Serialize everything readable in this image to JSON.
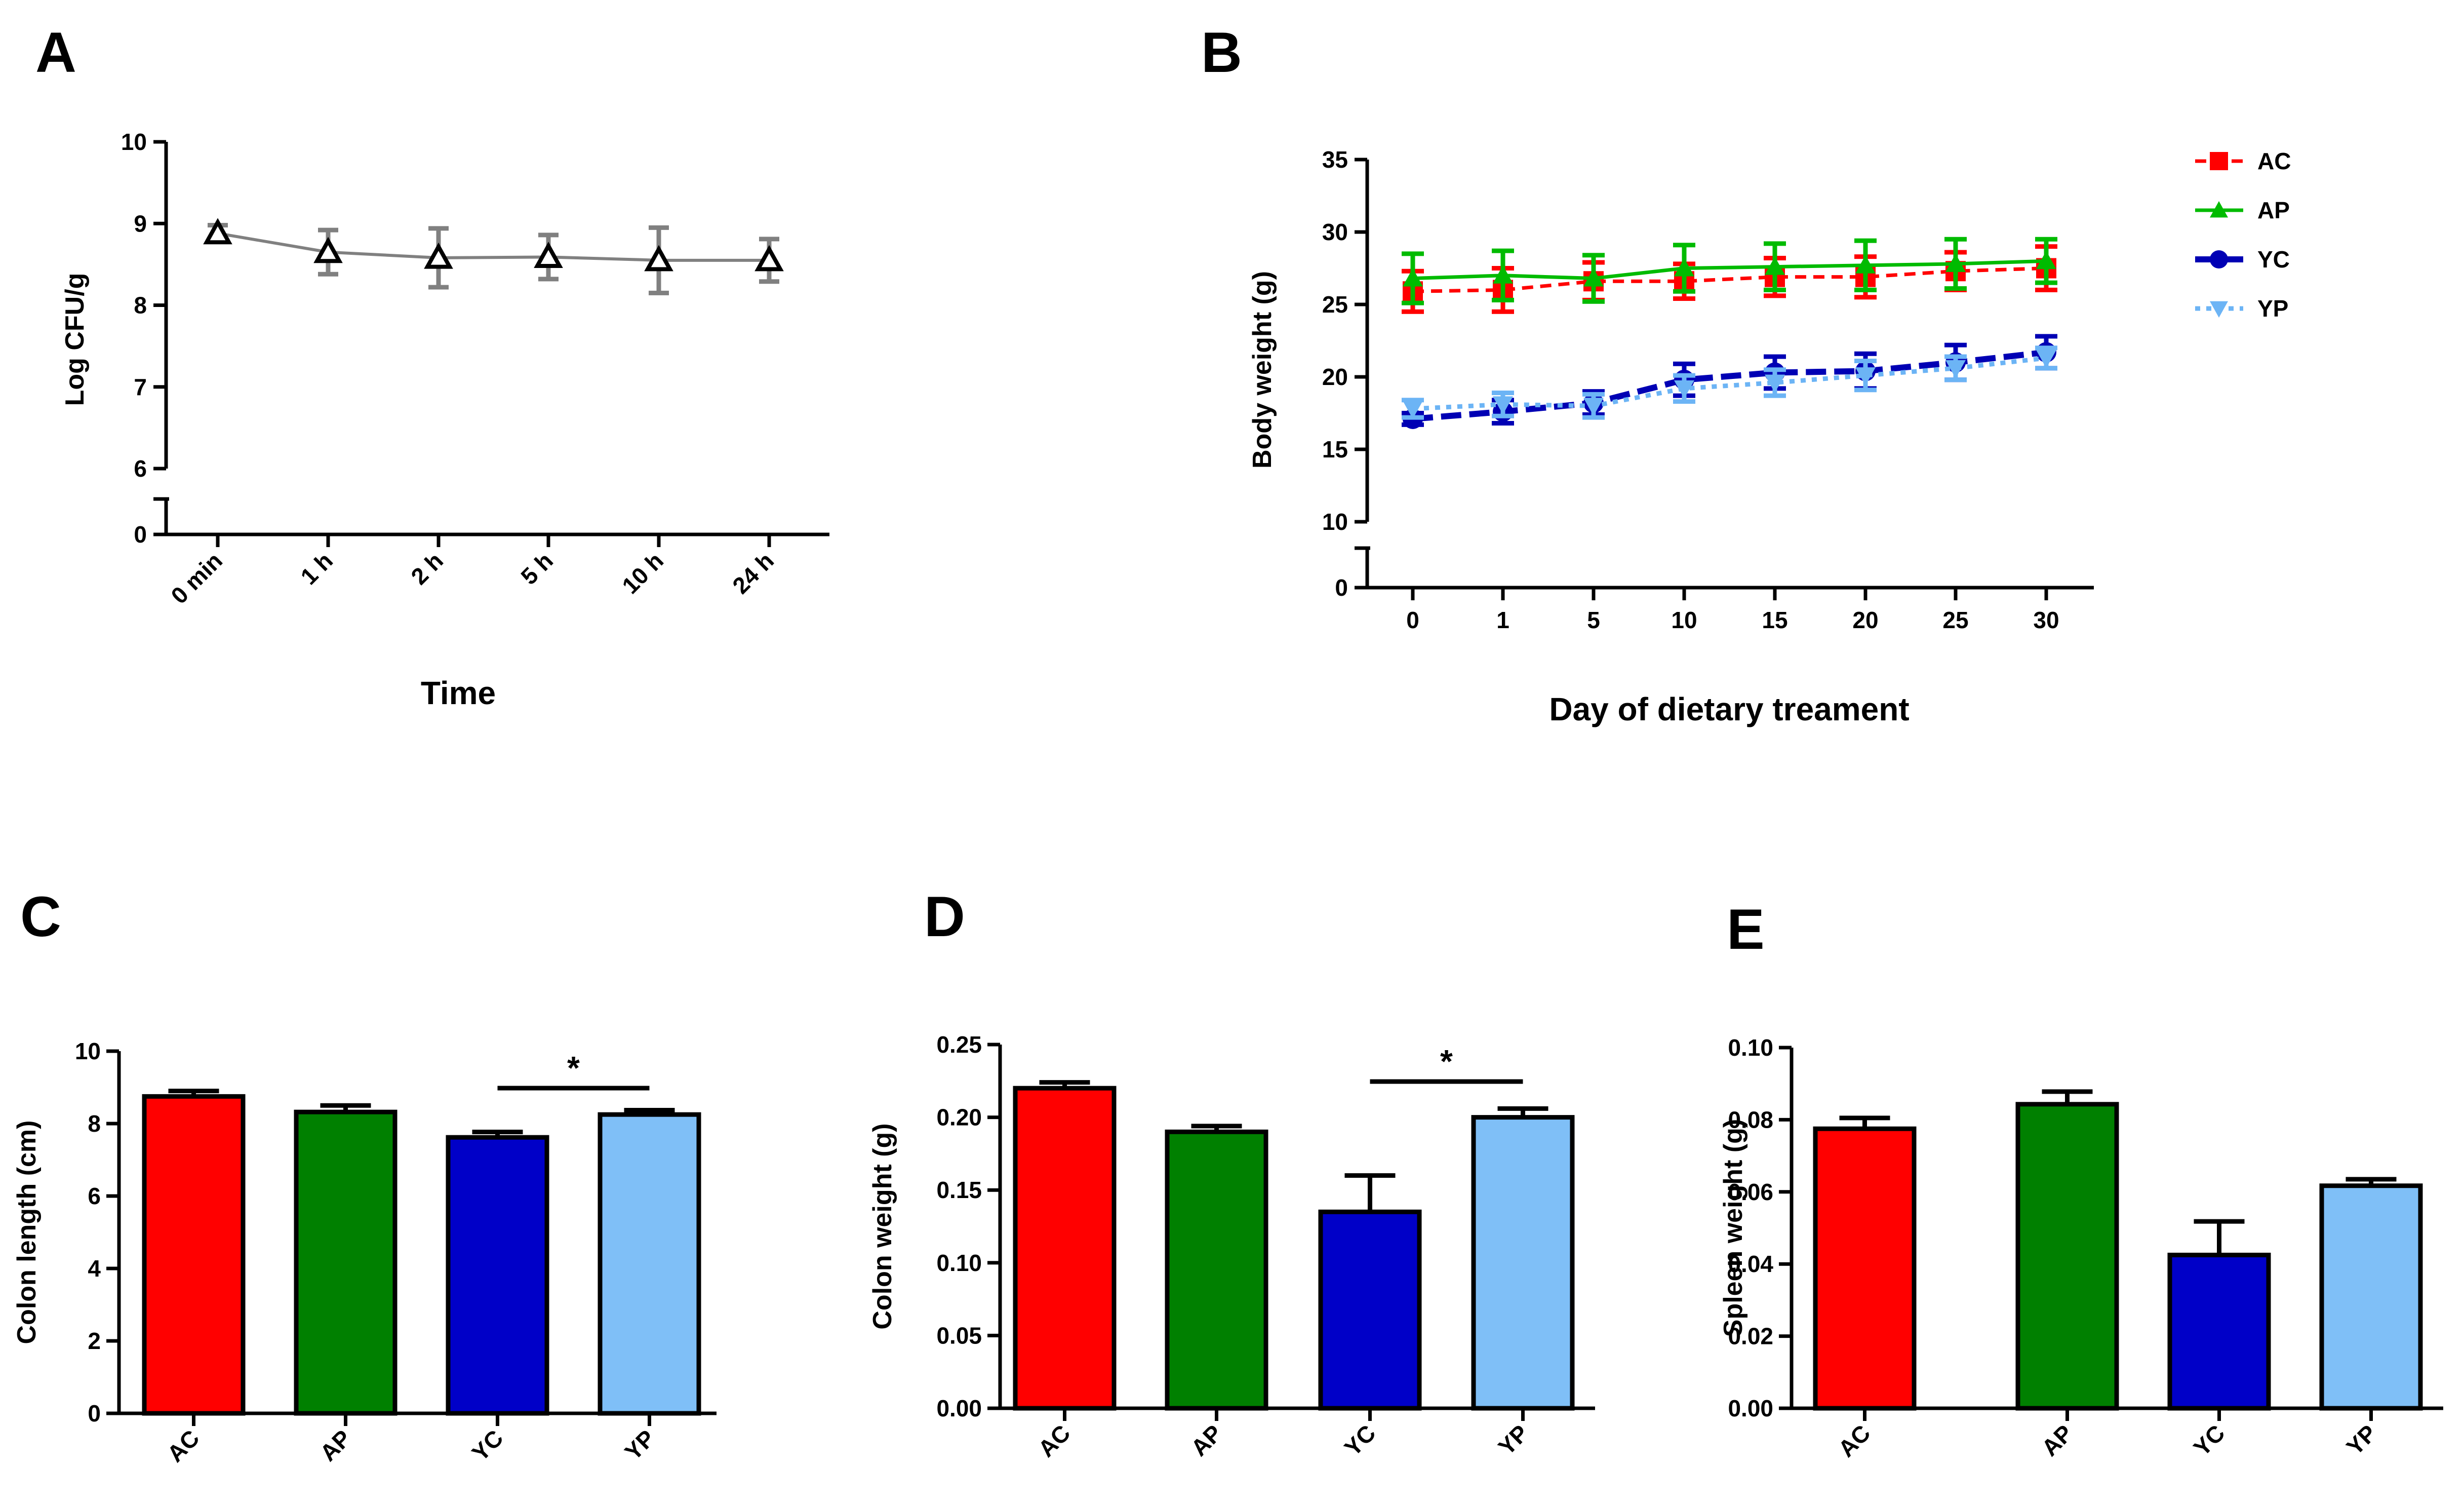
{
  "chart_data": [
    {
      "panel": "A",
      "type": "line",
      "x": [
        "0 min",
        "1 h",
        "2 h",
        "5 h",
        "10 h",
        "24 h"
      ],
      "series": [
        {
          "name": "Log CFU/g",
          "values": [
            8.88,
            8.65,
            8.58,
            8.59,
            8.55,
            8.55
          ],
          "errors": [
            0.1,
            0.27,
            0.36,
            0.27,
            0.4,
            0.26
          ],
          "color": "#808080"
        }
      ],
      "xlabel": "Time",
      "ylabel": "Log CFU/g",
      "yticks": [
        "0",
        "6",
        "7",
        "8",
        "9",
        "10"
      ],
      "ylim_upper": [
        6,
        10
      ],
      "ylim_lower": [
        0,
        0.5
      ]
    },
    {
      "panel": "B",
      "type": "line",
      "x": [
        "0",
        "1",
        "5",
        "10",
        "15",
        "20",
        "25",
        "30"
      ],
      "series": [
        {
          "name": "AC",
          "values": [
            25.9,
            26.0,
            26.6,
            26.6,
            26.9,
            26.9,
            27.3,
            27.5
          ],
          "errors": [
            1.4,
            1.5,
            1.3,
            1.2,
            1.3,
            1.4,
            1.3,
            1.5
          ],
          "color": "#ff0000"
        },
        {
          "name": "AP",
          "values": [
            26.8,
            27.0,
            26.8,
            27.5,
            27.6,
            27.7,
            27.8,
            28.0
          ],
          "errors": [
            1.7,
            1.7,
            1.6,
            1.6,
            1.6,
            1.7,
            1.7,
            1.5
          ],
          "color": "#00bb00"
        },
        {
          "name": "YC",
          "values": [
            17.1,
            17.6,
            18.2,
            19.8,
            20.3,
            20.4,
            21.0,
            21.7
          ],
          "errors": [
            0.4,
            0.8,
            0.8,
            1.1,
            1.1,
            1.2,
            1.2,
            1.1
          ],
          "color": "#0000b4"
        },
        {
          "name": "YP",
          "values": [
            17.8,
            18.1,
            18.0,
            19.2,
            19.6,
            20.1,
            20.6,
            21.3
          ],
          "errors": [
            0.6,
            0.8,
            0.8,
            0.9,
            0.9,
            1.0,
            0.8,
            0.7
          ],
          "color": "#6cb4f5"
        }
      ],
      "xlabel": "Day of dietary treament",
      "ylabel": "Body weight (g)",
      "yticks": [
        "0",
        "10",
        "15",
        "20",
        "25",
        "30",
        "35"
      ],
      "ylim_upper": [
        10,
        35
      ],
      "ylim_lower": [
        0,
        3
      ],
      "legend": "top-right"
    },
    {
      "panel": "C",
      "type": "bar",
      "categories": [
        "AC",
        "AP",
        "YC",
        "YP"
      ],
      "values": [
        8.75,
        8.32,
        7.62,
        8.25
      ],
      "errors": [
        0.15,
        0.18,
        0.15,
        0.12
      ],
      "colors": [
        "#ff0000",
        "#008000",
        "#0000c8",
        "#7fbff7"
      ],
      "ylabel": "Colon length (cm)",
      "ylim": [
        0,
        10
      ],
      "yticks": [
        "0",
        "2",
        "4",
        "6",
        "8",
        "10"
      ],
      "significance": {
        "from": "YC",
        "to": "YP",
        "label": "*"
      }
    },
    {
      "panel": "D",
      "type": "bar",
      "categories": [
        "AC",
        "AP",
        "YC",
        "YP"
      ],
      "values": [
        0.22,
        0.19,
        0.135,
        0.2
      ],
      "errors": [
        0.004,
        0.004,
        0.025,
        0.006
      ],
      "colors": [
        "#ff0000",
        "#008000",
        "#0000c8",
        "#7fbff7"
      ],
      "ylabel": "Colon weight (g)",
      "ylim": [
        0,
        0.25
      ],
      "yticks": [
        "0.00",
        "0.05",
        "0.10",
        "0.15",
        "0.20",
        "0.25"
      ],
      "significance": {
        "from": "YC",
        "to": "YP",
        "label": "*"
      }
    },
    {
      "panel": "E",
      "type": "bar",
      "categories": [
        "AC",
        "AP",
        "YC",
        "YP"
      ],
      "values": [
        0.0775,
        0.0843,
        0.0425,
        0.0617
      ],
      "errors": [
        0.003,
        0.0035,
        0.0093,
        0.0018
      ],
      "colors": [
        "#ff0000",
        "#008000",
        "#0000c8",
        "#7fbff7"
      ],
      "ylabel": "Spleen weight (g)",
      "ylim": [
        0,
        0.1
      ],
      "yticks": [
        "0.00",
        "0.02",
        "0.04",
        "0.06",
        "0.08",
        "0.10"
      ]
    }
  ]
}
